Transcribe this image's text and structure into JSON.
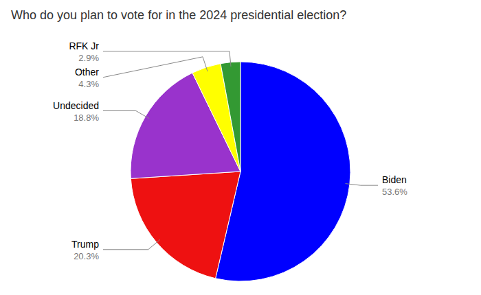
{
  "chart_data": {
    "type": "pie",
    "title": "Who do you plan to vote for in the 2024 presidential election?",
    "categories": [
      "Biden",
      "Trump",
      "Undecided",
      "Other",
      "RFK Jr"
    ],
    "values": [
      53.6,
      20.3,
      18.8,
      4.3,
      2.9
    ],
    "value_labels": [
      "53.6%",
      "20.3%",
      "18.8%",
      "4.3%",
      "2.9%"
    ],
    "colors": [
      "#0000ff",
      "#ee1111",
      "#9933cc",
      "#ffff00",
      "#339933"
    ],
    "data_labels": true
  }
}
